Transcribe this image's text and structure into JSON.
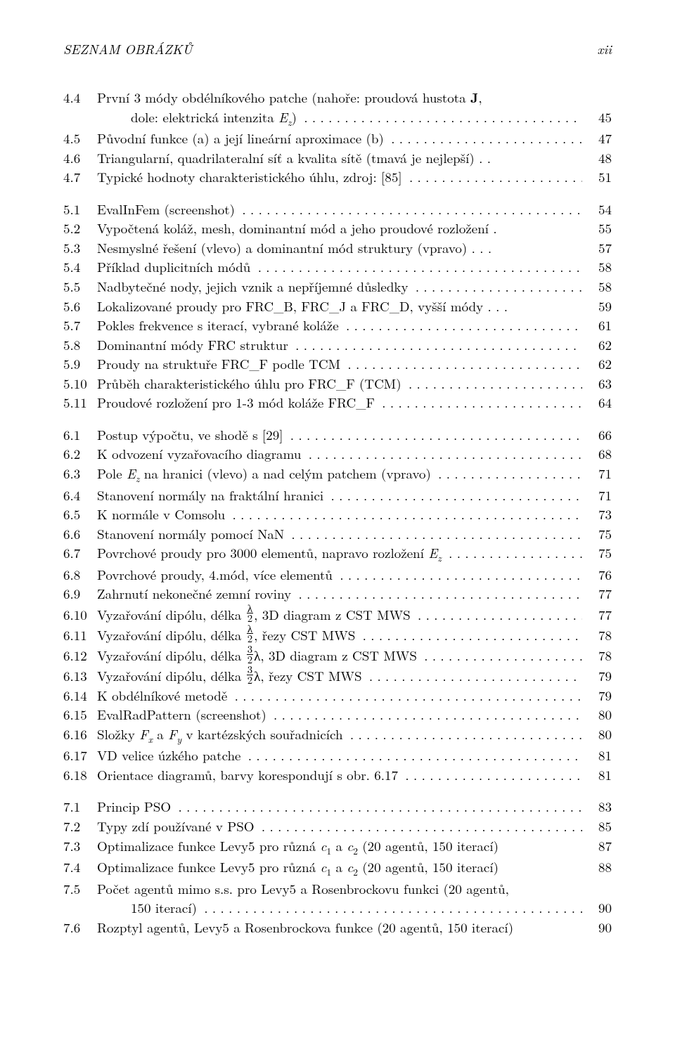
{
  "header": {
    "left": "SEZNAM OBRÁZKŮ",
    "right": "xii"
  },
  "rows": [
    {
      "type": "multi",
      "num": "4.4",
      "lines": [
        {
          "text": "První 3 módy obdélníkového patche (nahoře: proudová hustota <b>J</b>,",
          "dots": false,
          "pg": ""
        },
        {
          "text": "dole: elektrická intenzita <i>E<sub>z</sub></i>)",
          "dots": true,
          "cont": true,
          "pg": "45"
        }
      ]
    },
    {
      "type": "single",
      "num": "4.5",
      "text": "Původní funkce (a) a její lineární aproximace (b)",
      "pg": "47"
    },
    {
      "type": "single",
      "num": "4.6",
      "text": "Triangularní, quadrilateralní síť a kvalita sítě (tmavá je nejlepší) . .",
      "nodots": true,
      "pg": "48"
    },
    {
      "type": "single",
      "num": "4.7",
      "text": "Typické hodnoty charakteristického úhlu, zdroj: [85]",
      "pg": "51"
    },
    {
      "type": "gap"
    },
    {
      "type": "single",
      "num": "5.1",
      "text": "EvalInFem (screenshot)",
      "pg": "54"
    },
    {
      "type": "single",
      "num": "5.2",
      "text": "Vypočtená koláž, mesh, dominantní mód a jeho proudové rozložení .",
      "nodots": true,
      "pg": "55"
    },
    {
      "type": "single",
      "num": "5.3",
      "text": "Nesmyslné řešení (vlevo) a dominantní mód struktury (vpravo) .  .  .",
      "nodots": true,
      "pg": "57"
    },
    {
      "type": "single",
      "num": "5.4",
      "text": "Příklad duplicitních módů",
      "pg": "58"
    },
    {
      "type": "single",
      "num": "5.5",
      "text": "Nadbytečné nody, jejich vznik a nepříjemné důsledky",
      "pg": "58"
    },
    {
      "type": "single",
      "num": "5.6",
      "text": "Lokalizované proudy pro FRC_B, FRC_J a FRC_D, vyšší módy .  .  .",
      "nodots": true,
      "pg": "59"
    },
    {
      "type": "single",
      "num": "5.7",
      "text": "Pokles frekvence s iterací, vybrané koláže",
      "pg": "61"
    },
    {
      "type": "single",
      "num": "5.8",
      "text": "Dominantní módy FRC struktur",
      "pg": "62"
    },
    {
      "type": "single",
      "num": "5.9",
      "text": "Proudy na struktuře FRC_F podle TCM",
      "pg": "62"
    },
    {
      "type": "single",
      "num": "5.10",
      "text": "Průběh charakteristického úhlu pro FRC_F (TCM)",
      "pg": "63"
    },
    {
      "type": "single",
      "num": "5.11",
      "text": "Proudové rozložení pro 1-3 mód koláže FRC_F",
      "pg": "64"
    },
    {
      "type": "gap"
    },
    {
      "type": "single",
      "num": "6.1",
      "text": "Postup výpočtu, ve shodě s [29]",
      "pg": "66"
    },
    {
      "type": "single",
      "num": "6.2",
      "text": "K odvození vyzařovacího diagramu",
      "pg": "68"
    },
    {
      "type": "single",
      "num": "6.3",
      "text": "Pole <i>E<sub>z</sub></i> na hranici (vlevo) a nad celým patchem (vpravo)",
      "pg": "71"
    },
    {
      "type": "single",
      "num": "6.4",
      "text": "Stanovení normály na fraktální hranici",
      "pg": "71"
    },
    {
      "type": "single",
      "num": "6.5",
      "text": "K normále v Comsolu",
      "pg": "73"
    },
    {
      "type": "single",
      "num": "6.6",
      "text": "Stanovení normály pomocí NaN",
      "pg": "75"
    },
    {
      "type": "single",
      "num": "6.7",
      "text": "Povrchové proudy pro 3000 elementů, napravo rozložení <i>E<sub>z</sub></i>",
      "pg": "75"
    },
    {
      "type": "single",
      "num": "6.8",
      "text": "Povrchové proudy, 4.mód, více elementů",
      "pg": "76"
    },
    {
      "type": "single",
      "num": "6.9",
      "text": "Zahrnutí nekonečné zemní roviny",
      "pg": "77"
    },
    {
      "type": "single",
      "num": "6.10",
      "text": "Vyzařování dipólu, délka <span class=\"frac\"><span class=\"fn\">λ</span><span class=\"fd\">2</span></span>, 3D diagram z CST MWS",
      "pg": "77"
    },
    {
      "type": "single",
      "num": "6.11",
      "text": "Vyzařování dipólu, délka <span class=\"frac\"><span class=\"fn\">λ</span><span class=\"fd\">2</span></span>, řezy CST MWS",
      "pg": "78"
    },
    {
      "type": "single",
      "num": "6.12",
      "text": "Vyzařování dipólu, délka <span class=\"frac\"><span class=\"fn\">3</span><span class=\"fd\">2</span></span>λ, 3D diagram z CST MWS",
      "pg": "78"
    },
    {
      "type": "single",
      "num": "6.13",
      "text": "Vyzařování dipólu, délka <span class=\"frac\"><span class=\"fn\">3</span><span class=\"fd\">2</span></span>λ, řezy CST MWS",
      "pg": "79"
    },
    {
      "type": "single",
      "num": "6.14",
      "text": "K obdélníkové metodě",
      "pg": "79"
    },
    {
      "type": "single",
      "num": "6.15",
      "text": "EvalRadPattern (screenshot)",
      "pg": "80"
    },
    {
      "type": "single",
      "num": "6.16",
      "text": "Složky <i>F<sub>x</sub></i> a <i>F<sub>y</sub></i> v kartézských souřadnicích",
      "pg": "80"
    },
    {
      "type": "single",
      "num": "6.17",
      "text": "VD velice úzkého patche",
      "pg": "81"
    },
    {
      "type": "single",
      "num": "6.18",
      "text": "Orientace diagramů, barvy korespondují s obr. 6.17",
      "pg": "81"
    },
    {
      "type": "gap"
    },
    {
      "type": "single",
      "num": "7.1",
      "text": "Princip PSO",
      "pg": "83"
    },
    {
      "type": "single",
      "num": "7.2",
      "text": "Typy zdí používané v PSO",
      "pg": "85"
    },
    {
      "type": "single",
      "num": "7.3",
      "text": "Optimalizace funkce Levy5 pro různá <i>c</i><sub>1</sub> a <i>c</i><sub>2</sub> (20 agentů, 150 iterací)",
      "nodots": true,
      "pg": "87"
    },
    {
      "type": "single",
      "num": "7.4",
      "text": "Optimalizace funkce Levy5 pro různá <i>c</i><sub>1</sub> a <i>c</i><sub>2</sub> (20 agentů, 150 iterací)",
      "nodots": true,
      "pg": "88"
    },
    {
      "type": "multi",
      "num": "7.5",
      "lines": [
        {
          "text": "Počet agentů mimo s.s. pro Levy5 a Rosenbrockovu funkci (20 agentů,",
          "dots": false,
          "pg": ""
        },
        {
          "text": "150 iterací)",
          "dots": true,
          "cont": true,
          "pg": "90"
        }
      ]
    },
    {
      "type": "single",
      "num": "7.6",
      "text": "Rozptyl agentů, Levy5 a Rosenbrockova funkce (20 agentů, 150 iterací)",
      "nodots": true,
      "pg": "90"
    }
  ]
}
